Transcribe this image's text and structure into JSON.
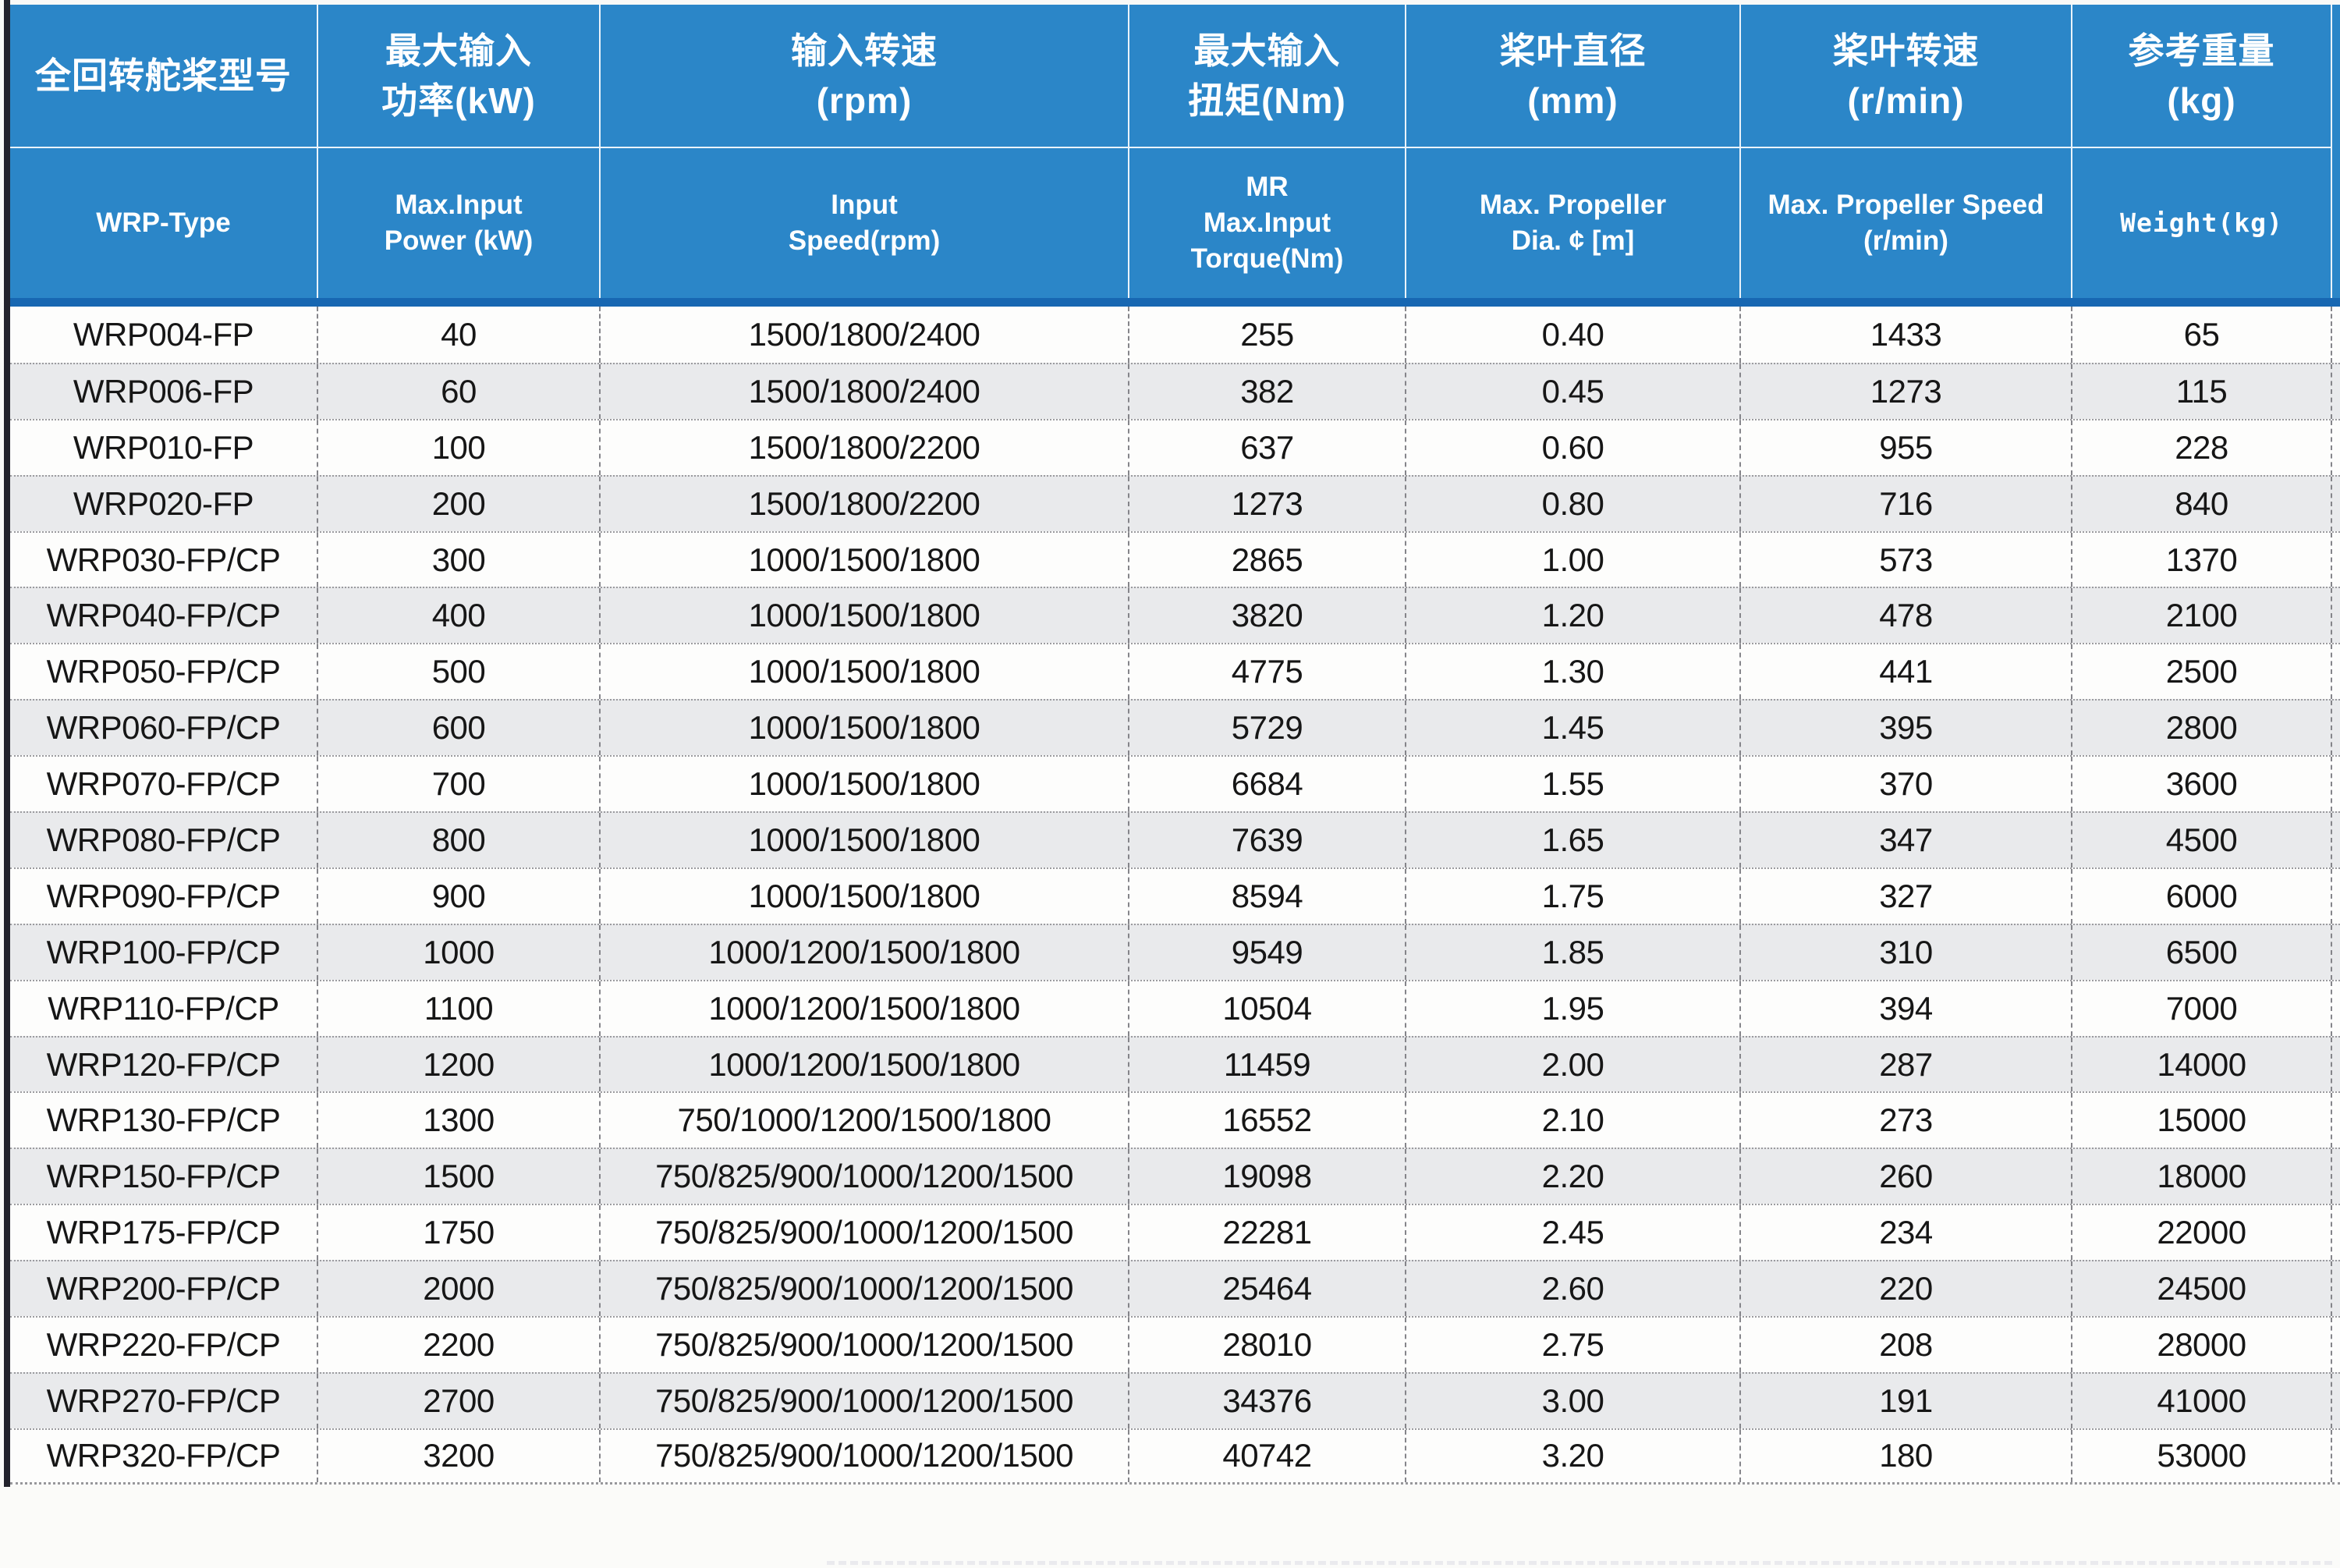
{
  "table": {
    "header_cn": [
      "全回转舵桨型号",
      "最大输入\n功率(kW)",
      "输入转速\n(rpm)",
      "最大输入\n扭矩(Nm)",
      "桨叶直径\n(mm)",
      "桨叶转速\n(r/min)",
      "参考重量\n(kg)"
    ],
    "header_en": [
      "WRP-Type",
      "Max.Input\nPower (kW)",
      "Input\nSpeed(rpm)",
      "MR\nMax.Input\nTorque(Nm)",
      "Max. Propeller\nDia. ¢ [m]",
      "Max. Propeller Speed\n(r/min)",
      "Weight(kg)"
    ],
    "column_keys": [
      "type",
      "max-input-power-kw",
      "input-speed-rpm",
      "max-input-torque-nm",
      "max-propeller-dia-m",
      "max-propeller-speed-rpm",
      "weight-kg"
    ],
    "rows": [
      [
        "WRP004-FP",
        "40",
        "1500/1800/2400",
        "255",
        "0.40",
        "1433",
        "65"
      ],
      [
        "WRP006-FP",
        "60",
        "1500/1800/2400",
        "382",
        "0.45",
        "1273",
        "115"
      ],
      [
        "WRP010-FP",
        "100",
        "1500/1800/2200",
        "637",
        "0.60",
        "955",
        "228"
      ],
      [
        "WRP020-FP",
        "200",
        "1500/1800/2200",
        "1273",
        "0.80",
        "716",
        "840"
      ],
      [
        "WRP030-FP/CP",
        "300",
        "1000/1500/1800",
        "2865",
        "1.00",
        "573",
        "1370"
      ],
      [
        "WRP040-FP/CP",
        "400",
        "1000/1500/1800",
        "3820",
        "1.20",
        "478",
        "2100"
      ],
      [
        "WRP050-FP/CP",
        "500",
        "1000/1500/1800",
        "4775",
        "1.30",
        "441",
        "2500"
      ],
      [
        "WRP060-FP/CP",
        "600",
        "1000/1500/1800",
        "5729",
        "1.45",
        "395",
        "2800"
      ],
      [
        "WRP070-FP/CP",
        "700",
        "1000/1500/1800",
        "6684",
        "1.55",
        "370",
        "3600"
      ],
      [
        "WRP080-FP/CP",
        "800",
        "1000/1500/1800",
        "7639",
        "1.65",
        "347",
        "4500"
      ],
      [
        "WRP090-FP/CP",
        "900",
        "1000/1500/1800",
        "8594",
        "1.75",
        "327",
        "6000"
      ],
      [
        "WRP100-FP/CP",
        "1000",
        "1000/1200/1500/1800",
        "9549",
        "1.85",
        "310",
        "6500"
      ],
      [
        "WRP110-FP/CP",
        "1100",
        "1000/1200/1500/1800",
        "10504",
        "1.95",
        "394",
        "7000"
      ],
      [
        "WRP120-FP/CP",
        "1200",
        "1000/1200/1500/1800",
        "11459",
        "2.00",
        "287",
        "14000"
      ],
      [
        "WRP130-FP/CP",
        "1300",
        "750/1000/1200/1500/1800",
        "16552",
        "2.10",
        "273",
        "15000"
      ],
      [
        "WRP150-FP/CP",
        "1500",
        "750/825/900/1000/1200/1500",
        "19098",
        "2.20",
        "260",
        "18000"
      ],
      [
        "WRP175-FP/CP",
        "1750",
        "750/825/900/1000/1200/1500",
        "22281",
        "2.45",
        "234",
        "22000"
      ],
      [
        "WRP200-FP/CP",
        "2000",
        "750/825/900/1000/1200/1500",
        "25464",
        "2.60",
        "220",
        "24500"
      ],
      [
        "WRP220-FP/CP",
        "2200",
        "750/825/900/1000/1200/1500",
        "28010",
        "2.75",
        "208",
        "28000"
      ],
      [
        "WRP270-FP/CP",
        "2700",
        "750/825/900/1000/1200/1500",
        "34376",
        "3.00",
        "191",
        "41000"
      ],
      [
        "WRP320-FP/CP",
        "3200",
        "750/825/900/1000/1200/1500",
        "40742",
        "3.20",
        "180",
        "53000"
      ]
    ]
  },
  "colors": {
    "header_blue": "#2b86c8",
    "header_divider_blue": "#1767b2",
    "row_alt_gray": "#e9eaec",
    "row_white": "#fdfdfc",
    "text_dark": "#161616",
    "header_text": "#ffffff"
  }
}
